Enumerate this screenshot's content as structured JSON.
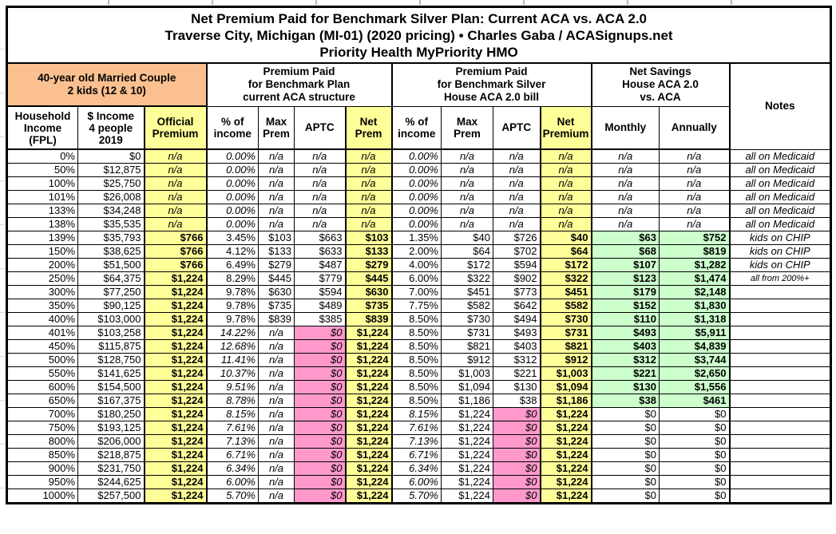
{
  "title": {
    "line1": "Net Premium Paid for Benchmark Silver Plan: Current ACA vs. ACA 2.0",
    "line2": "Traverse City, Michigan (MI-01) (2020 pricing) • Charles Gaba / ACASignups.net",
    "line3": "Priority Health MyPriority HMO"
  },
  "header": {
    "profile": "40-year old Married Couple\n2 kids (12 & 10)",
    "group_aca": "Premium Paid\nfor Benchmark Plan\ncurrent ACA structure",
    "group_house": "Premium Paid\nfor Benchmark Silver\nHouse ACA 2.0 bill",
    "group_savings": "Net Savings\nHouse ACA 2.0\nvs. ACA",
    "notes_label": "Notes",
    "sub_columns": [
      "Household\nIncome\n(FPL)",
      "$ Income\n4 people\n2019",
      "Official\nPremium",
      "% of\nincome",
      "Max\nPrem",
      "APTC",
      "Net\nPrem",
      "% of\nincome",
      "Max\nPrem",
      "APTC",
      "Net\nPremium",
      "Monthly",
      "Annually"
    ]
  },
  "colors": {
    "highlight_yellow": "#FFFF99",
    "profile_orange": "#FAC090",
    "zero_aptc_pink": "#FF99CC",
    "savings_green": "#CCFFCC",
    "grid_black": "#000000"
  },
  "chart_data": {
    "type": "table",
    "title": "Net Premium Paid for Benchmark Silver Plan: Current ACA vs. ACA 2.0 — Traverse City, Michigan (MI-01) (2020 pricing) — Priority Health MyPriority HMO",
    "columns": [
      "Household Income (FPL)",
      "$ Income 4 people 2019",
      "Official Premium",
      "Current ACA % of income",
      "Current ACA Max Prem",
      "Current ACA APTC",
      "Current ACA Net Prem",
      "House ACA 2.0 % of income",
      "House ACA 2.0 Max Prem",
      "House ACA 2.0 APTC",
      "House ACA 2.0 Net Premium",
      "Net Savings Monthly",
      "Net Savings Annually",
      "Notes"
    ],
    "row_types": [
      "medicaid",
      "medicaid",
      "medicaid",
      "medicaid",
      "medicaid",
      "medicaid",
      "subsidy",
      "subsidy",
      "subsidy",
      "subsidy",
      "subsidy",
      "subsidy",
      "subsidy",
      "cliff",
      "cliff",
      "cliff",
      "cliff",
      "cliff",
      "cliff",
      "nocap",
      "nocap",
      "nocap",
      "nocap",
      "nocap",
      "nocap",
      "nocap"
    ],
    "rows": [
      [
        "0%",
        "$0",
        "n/a",
        "0.00%",
        "n/a",
        "n/a",
        "n/a",
        "0.00%",
        "n/a",
        "n/a",
        "n/a",
        "n/a",
        "n/a",
        "all on Medicaid"
      ],
      [
        "50%",
        "$12,875",
        "n/a",
        "0.00%",
        "n/a",
        "n/a",
        "n/a",
        "0.00%",
        "n/a",
        "n/a",
        "n/a",
        "n/a",
        "n/a",
        "all on Medicaid"
      ],
      [
        "100%",
        "$25,750",
        "n/a",
        "0.00%",
        "n/a",
        "n/a",
        "n/a",
        "0.00%",
        "n/a",
        "n/a",
        "n/a",
        "n/a",
        "n/a",
        "all on Medicaid"
      ],
      [
        "101%",
        "$26,008",
        "n/a",
        "0.00%",
        "n/a",
        "n/a",
        "n/a",
        "0.00%",
        "n/a",
        "n/a",
        "n/a",
        "n/a",
        "n/a",
        "all on Medicaid"
      ],
      [
        "133%",
        "$34,248",
        "n/a",
        "0.00%",
        "n/a",
        "n/a",
        "n/a",
        "0.00%",
        "n/a",
        "n/a",
        "n/a",
        "n/a",
        "n/a",
        "all on Medicaid"
      ],
      [
        "138%",
        "$35,535",
        "n/a",
        "0.00%",
        "n/a",
        "n/a",
        "n/a",
        "0.00%",
        "n/a",
        "n/a",
        "n/a",
        "n/a",
        "n/a",
        "all on Medicaid"
      ],
      [
        "139%",
        "$35,793",
        "$766",
        "3.45%",
        "$103",
        "$663",
        "$103",
        "1.35%",
        "$40",
        "$726",
        "$40",
        "$63",
        "$752",
        "kids on CHIP"
      ],
      [
        "150%",
        "$38,625",
        "$766",
        "4.12%",
        "$133",
        "$633",
        "$133",
        "2.00%",
        "$64",
        "$702",
        "$64",
        "$68",
        "$819",
        "kids on CHIP"
      ],
      [
        "200%",
        "$51,500",
        "$766",
        "6.49%",
        "$279",
        "$487",
        "$279",
        "4.00%",
        "$172",
        "$594",
        "$172",
        "$107",
        "$1,282",
        "kids on CHIP"
      ],
      [
        "250%",
        "$64,375",
        "$1,224",
        "8.29%",
        "$445",
        "$779",
        "$445",
        "6.00%",
        "$322",
        "$902",
        "$322",
        "$123",
        "$1,474",
        "all from 200%+"
      ],
      [
        "300%",
        "$77,250",
        "$1,224",
        "9.78%",
        "$630",
        "$594",
        "$630",
        "7.00%",
        "$451",
        "$773",
        "$451",
        "$179",
        "$2,148",
        ""
      ],
      [
        "350%",
        "$90,125",
        "$1,224",
        "9.78%",
        "$735",
        "$489",
        "$735",
        "7.75%",
        "$582",
        "$642",
        "$582",
        "$152",
        "$1,830",
        ""
      ],
      [
        "400%",
        "$103,000",
        "$1,224",
        "9.78%",
        "$839",
        "$385",
        "$839",
        "8.50%",
        "$730",
        "$494",
        "$730",
        "$110",
        "$1,318",
        ""
      ],
      [
        "401%",
        "$103,258",
        "$1,224",
        "14.22%",
        "n/a",
        "$0",
        "$1,224",
        "8.50%",
        "$731",
        "$493",
        "$731",
        "$493",
        "$5,911",
        ""
      ],
      [
        "450%",
        "$115,875",
        "$1,224",
        "12.68%",
        "n/a",
        "$0",
        "$1,224",
        "8.50%",
        "$821",
        "$403",
        "$821",
        "$403",
        "$4,839",
        ""
      ],
      [
        "500%",
        "$128,750",
        "$1,224",
        "11.41%",
        "n/a",
        "$0",
        "$1,224",
        "8.50%",
        "$912",
        "$312",
        "$912",
        "$312",
        "$3,744",
        ""
      ],
      [
        "550%",
        "$141,625",
        "$1,224",
        "10.37%",
        "n/a",
        "$0",
        "$1,224",
        "8.50%",
        "$1,003",
        "$221",
        "$1,003",
        "$221",
        "$2,650",
        ""
      ],
      [
        "600%",
        "$154,500",
        "$1,224",
        "9.51%",
        "n/a",
        "$0",
        "$1,224",
        "8.50%",
        "$1,094",
        "$130",
        "$1,094",
        "$130",
        "$1,556",
        ""
      ],
      [
        "650%",
        "$167,375",
        "$1,224",
        "8.78%",
        "n/a",
        "$0",
        "$1,224",
        "8.50%",
        "$1,186",
        "$38",
        "$1,186",
        "$38",
        "$461",
        ""
      ],
      [
        "700%",
        "$180,250",
        "$1,224",
        "8.15%",
        "n/a",
        "$0",
        "$1,224",
        "8.15%",
        "$1,224",
        "$0",
        "$1,224",
        "$0",
        "$0",
        ""
      ],
      [
        "750%",
        "$193,125",
        "$1,224",
        "7.61%",
        "n/a",
        "$0",
        "$1,224",
        "7.61%",
        "$1,224",
        "$0",
        "$1,224",
        "$0",
        "$0",
        ""
      ],
      [
        "800%",
        "$206,000",
        "$1,224",
        "7.13%",
        "n/a",
        "$0",
        "$1,224",
        "7.13%",
        "$1,224",
        "$0",
        "$1,224",
        "$0",
        "$0",
        ""
      ],
      [
        "850%",
        "$218,875",
        "$1,224",
        "6.71%",
        "n/a",
        "$0",
        "$1,224",
        "6.71%",
        "$1,224",
        "$0",
        "$1,224",
        "$0",
        "$0",
        ""
      ],
      [
        "900%",
        "$231,750",
        "$1,224",
        "6.34%",
        "n/a",
        "$0",
        "$1,224",
        "6.34%",
        "$1,224",
        "$0",
        "$1,224",
        "$0",
        "$0",
        ""
      ],
      [
        "950%",
        "$244,625",
        "$1,224",
        "6.00%",
        "n/a",
        "$0",
        "$1,224",
        "6.00%",
        "$1,224",
        "$0",
        "$1,224",
        "$0",
        "$0",
        ""
      ],
      [
        "1000%",
        "$257,500",
        "$1,224",
        "5.70%",
        "n/a",
        "$0",
        "$1,224",
        "5.70%",
        "$1,224",
        "$0",
        "$1,224",
        "$0",
        "$0",
        ""
      ]
    ]
  }
}
